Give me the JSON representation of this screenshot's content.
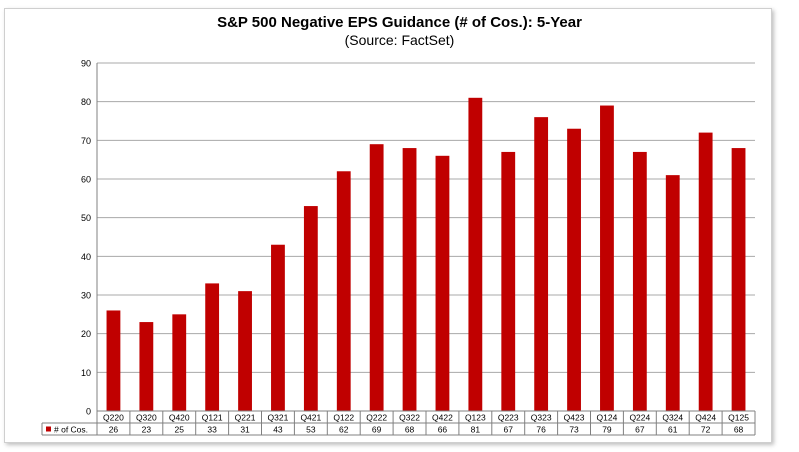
{
  "chart_data": {
    "type": "bar",
    "title": "S&P 500 Negative EPS Guidance (# of Cos.): 5-Year",
    "subtitle": "(Source: FactSet)",
    "categories": [
      "Q220",
      "Q320",
      "Q420",
      "Q121",
      "Q221",
      "Q321",
      "Q421",
      "Q122",
      "Q222",
      "Q322",
      "Q422",
      "Q123",
      "Q223",
      "Q323",
      "Q423",
      "Q124",
      "Q224",
      "Q324",
      "Q424",
      "Q125"
    ],
    "series": [
      {
        "name": "# of Cos.",
        "values": [
          26,
          23,
          25,
          33,
          31,
          43,
          53,
          62,
          69,
          68,
          66,
          81,
          67,
          76,
          73,
          79,
          67,
          61,
          72,
          68
        ]
      }
    ],
    "ylim": [
      0,
      90
    ],
    "yticks": [
      0,
      10,
      20,
      30,
      40,
      50,
      60,
      70,
      80,
      90
    ],
    "grid": true,
    "legend": "data-table",
    "colors": {
      "bar": "#c00000",
      "grid": "#a8a8a8"
    }
  }
}
